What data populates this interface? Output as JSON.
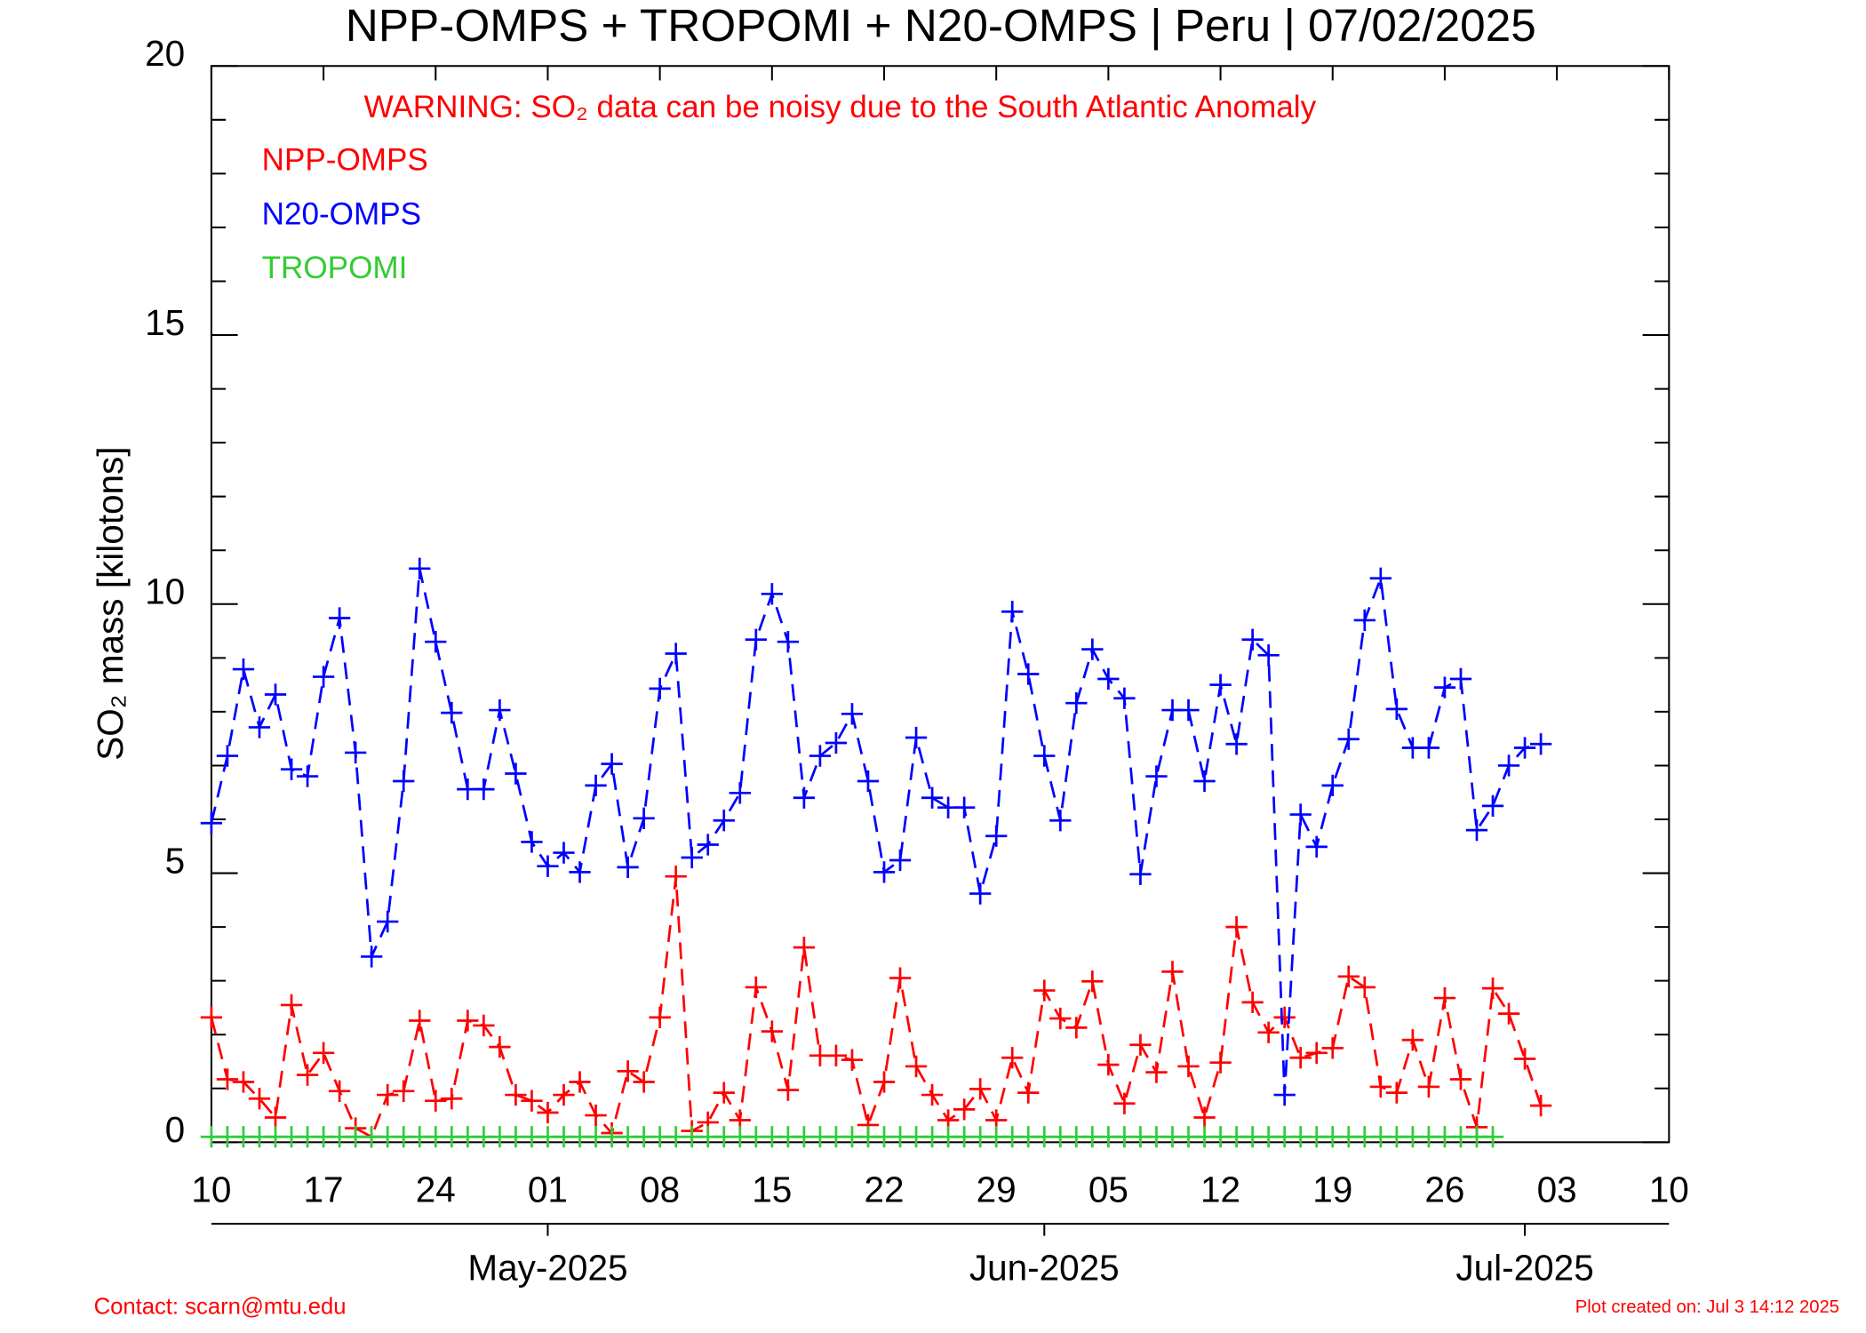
{
  "chart_data": {
    "type": "line",
    "title": "NPP-OMPS + TROPOMI + N20-OMPS | Peru | 07/02/2025",
    "annotation": "WARNING: SO₂ data can be noisy due to the South Atlantic Anomaly",
    "y_label": "SO₂ mass [kilotons]",
    "contact": "Contact: scarn@mtu.edu",
    "created": "Plot created on: Jul  3 14:12 2025",
    "x": [
      "2025-04-10",
      "2025-04-11",
      "2025-04-12",
      "2025-04-13",
      "2025-04-14",
      "2025-04-15",
      "2025-04-16",
      "2025-04-17",
      "2025-04-18",
      "2025-04-19",
      "2025-04-20",
      "2025-04-21",
      "2025-04-22",
      "2025-04-23",
      "2025-04-24",
      "2025-04-25",
      "2025-04-26",
      "2025-04-27",
      "2025-04-28",
      "2025-04-29",
      "2025-04-30",
      "2025-05-01",
      "2025-05-02",
      "2025-05-03",
      "2025-05-04",
      "2025-05-05",
      "2025-05-06",
      "2025-05-07",
      "2025-05-08",
      "2025-05-09",
      "2025-05-10",
      "2025-05-11",
      "2025-05-12",
      "2025-05-13",
      "2025-05-14",
      "2025-05-15",
      "2025-05-16",
      "2025-05-17",
      "2025-05-18",
      "2025-05-19",
      "2025-05-20",
      "2025-05-21",
      "2025-05-22",
      "2025-05-23",
      "2025-05-24",
      "2025-05-25",
      "2025-05-26",
      "2025-05-27",
      "2025-05-28",
      "2025-05-29",
      "2025-05-30",
      "2025-05-31",
      "2025-06-01",
      "2025-06-02",
      "2025-06-03",
      "2025-06-04",
      "2025-06-05",
      "2025-06-06",
      "2025-06-07",
      "2025-06-08",
      "2025-06-09",
      "2025-06-10",
      "2025-06-11",
      "2025-06-12",
      "2025-06-13",
      "2025-06-14",
      "2025-06-15",
      "2025-06-16",
      "2025-06-17",
      "2025-06-18",
      "2025-06-19",
      "2025-06-20",
      "2025-06-21",
      "2025-06-22",
      "2025-06-23",
      "2025-06-24",
      "2025-06-25",
      "2025-06-26",
      "2025-06-27",
      "2025-06-28",
      "2025-06-29",
      "2025-06-30",
      "2025-07-01",
      "2025-07-02"
    ],
    "series": [
      {
        "name": "NPP-OMPS",
        "color": "#ff0000",
        "values": [
          2.32,
          1.17,
          1.12,
          0.81,
          0.46,
          2.55,
          1.25,
          1.66,
          0.95,
          0.26,
          0.1,
          0.88,
          0.95,
          2.26,
          0.77,
          0.81,
          2.26,
          2.17,
          1.77,
          0.88,
          0.77,
          0.55,
          0.88,
          1.12,
          0.5,
          0.17,
          1.32,
          1.12,
          2.32,
          4.94,
          0.21,
          0.37,
          0.92,
          0.41,
          2.88,
          2.06,
          0.97,
          3.62,
          1.61,
          1.61,
          1.53,
          0.32,
          1.12,
          3.05,
          1.41,
          0.88,
          0.41,
          0.61,
          0.99,
          0.41,
          1.57,
          0.92,
          2.82,
          2.3,
          2.13,
          2.99,
          1.44,
          0.72,
          1.81,
          1.3,
          3.17,
          1.41,
          0.46,
          1.48,
          4.0,
          2.6,
          2.04,
          2.32,
          1.57,
          1.66,
          1.75,
          3.08,
          2.88,
          1.03,
          0.92,
          1.9,
          1.03,
          2.68,
          1.17,
          0.28,
          2.86,
          2.39,
          1.55,
          0.68
        ]
      },
      {
        "name": "N20-OMPS",
        "color": "#0000ff",
        "values": [
          5.93,
          7.18,
          8.79,
          7.71,
          8.32,
          6.93,
          6.8,
          8.65,
          9.74,
          7.24,
          3.45,
          4.1,
          6.71,
          10.66,
          9.3,
          7.98,
          6.56,
          6.56,
          8.03,
          6.85,
          5.58,
          5.13,
          5.38,
          5.02,
          6.63,
          7.03,
          5.11,
          6.02,
          8.43,
          9.08,
          5.29,
          5.53,
          5.98,
          6.49,
          9.34,
          10.19,
          9.3,
          6.4,
          7.18,
          7.42,
          7.96,
          6.71,
          5.02,
          5.24,
          7.52,
          6.4,
          6.22,
          6.22,
          4.62,
          5.69,
          9.86,
          8.7,
          7.18,
          5.98,
          8.16,
          9.16,
          8.61,
          8.25,
          4.98,
          6.8,
          8.03,
          8.03,
          6.71,
          8.5,
          7.4,
          9.34,
          9.05,
          0.88,
          6.09,
          5.49,
          6.63,
          7.49,
          9.7,
          10.48,
          8.05,
          7.33,
          7.33,
          8.45,
          8.61,
          5.8,
          6.25,
          7.0,
          7.33,
          7.4
        ]
      },
      {
        "name": "TROPOMI",
        "color": "#33cc33",
        "values": [
          0.1,
          0.1,
          0.1,
          0.1,
          0.1,
          0.1,
          0.1,
          0.1,
          0.1,
          0.1,
          0.1,
          0.1,
          0.1,
          0.1,
          0.1,
          0.1,
          0.1,
          0.1,
          0.1,
          0.1,
          0.1,
          0.1,
          0.1,
          0.1,
          0.1,
          0.1,
          0.1,
          0.1,
          0.1,
          0.1,
          0.1,
          0.1,
          0.1,
          0.1,
          0.1,
          0.1,
          0.1,
          0.1,
          0.1,
          0.1,
          0.1,
          0.1,
          0.1,
          0.1,
          0.1,
          0.1,
          0.1,
          0.1,
          0.1,
          0.1,
          0.1,
          0.1,
          0.1,
          0.1,
          0.1,
          0.1,
          0.1,
          0.1,
          0.1,
          0.1,
          0.1,
          0.1,
          0.1,
          0.1,
          0.1,
          0.1,
          0.1,
          0.1,
          0.1,
          0.1,
          0.1,
          0.1,
          0.1,
          0.1,
          0.1,
          0.1,
          0.1,
          0.1,
          0.1,
          0.1,
          0.1,
          null,
          null,
          null
        ]
      }
    ],
    "xlim": [
      "2025-04-10",
      "2025-07-10"
    ],
    "xticks": [
      {
        "value": "2025-04-10",
        "label": "10"
      },
      {
        "value": "2025-04-17",
        "label": "17"
      },
      {
        "value": "2025-04-24",
        "label": "24"
      },
      {
        "value": "2025-05-01",
        "label": "01"
      },
      {
        "value": "2025-05-08",
        "label": "08"
      },
      {
        "value": "2025-05-15",
        "label": "15"
      },
      {
        "value": "2025-05-22",
        "label": "22"
      },
      {
        "value": "2025-05-29",
        "label": "29"
      },
      {
        "value": "2025-06-05",
        "label": "05"
      },
      {
        "value": "2025-06-12",
        "label": "12"
      },
      {
        "value": "2025-06-19",
        "label": "19"
      },
      {
        "value": "2025-06-26",
        "label": "26"
      },
      {
        "value": "2025-07-03",
        "label": "03"
      },
      {
        "value": "2025-07-10",
        "label": "10"
      }
    ],
    "x2ticks": [
      {
        "value": "2025-05-01",
        "label": "May-2025"
      },
      {
        "value": "2025-06-01",
        "label": "Jun-2025"
      },
      {
        "value": "2025-07-01",
        "label": "Jul-2025"
      }
    ],
    "ylim": [
      0,
      20
    ],
    "yticks": [
      0,
      5,
      10,
      15,
      20
    ],
    "yminorticks": [
      1,
      2,
      3,
      4,
      6,
      7,
      8,
      9,
      11,
      12,
      13,
      14,
      16,
      17,
      18,
      19
    ],
    "line_style": "dashed",
    "marker": "plus"
  }
}
